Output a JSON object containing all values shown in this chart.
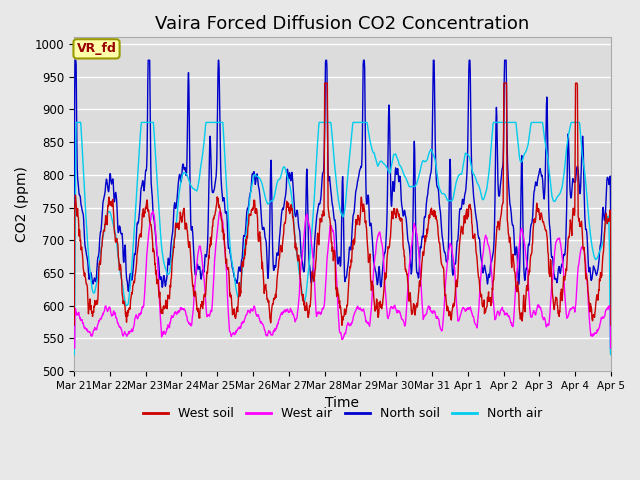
{
  "title": "Vaira Forced Diffusion CO2 Concentration",
  "xlabel": "Time",
  "ylabel": "CO2 (ppm)",
  "ylim": [
    500,
    1010
  ],
  "annotation": "VR_fd",
  "tick_labels": [
    "Mar 21",
    "Mar 22",
    "Mar 23",
    "Mar 24",
    "Mar 25",
    "Mar 26",
    "Mar 27",
    "Mar 28",
    "Mar 29",
    "Mar 30",
    "Mar 31",
    "Apr 1",
    "Apr 2",
    "Apr 3",
    "Apr 4",
    "Apr 5"
  ],
  "legend_labels": [
    "West soil",
    "West air",
    "North soil",
    "North air"
  ],
  "colors": {
    "west_soil": "#cc0000",
    "west_air": "#ff00ff",
    "north_soil": "#0000cc",
    "north_air": "#00ccee"
  },
  "background_color": "#e8e8e8",
  "plot_bg": "#dcdcdc",
  "grid_color": "#ffffff",
  "yticks": [
    500,
    550,
    600,
    650,
    700,
    750,
    800,
    850,
    900,
    950,
    1000
  ],
  "n_days": 15
}
